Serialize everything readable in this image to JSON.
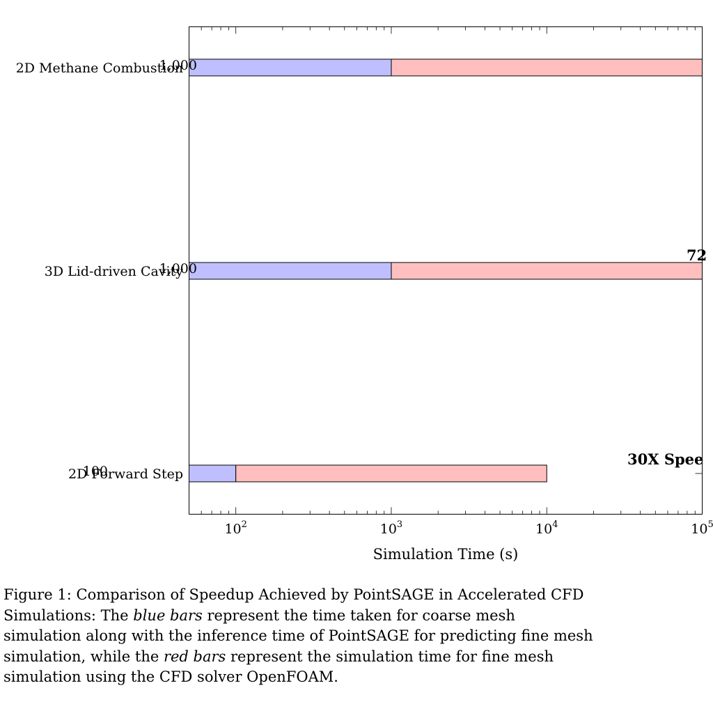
{
  "chart_data": {
    "type": "bar",
    "orientation": "horizontal",
    "stacked": true,
    "x_scale": "log",
    "xlim": [
      50,
      100000
    ],
    "xlabel": "Simulation Time (s)",
    "x_ticks": [
      100,
      1000,
      10000,
      100000
    ],
    "x_tick_labels": [
      {
        "base": "10",
        "exp": "2"
      },
      {
        "base": "10",
        "exp": "3"
      },
      {
        "base": "10",
        "exp": "4"
      },
      {
        "base": "10",
        "exp": "5"
      }
    ],
    "categories": [
      "2D Methane Combustion",
      "3D Lid-driven Cavity",
      "2D Forward Step"
    ],
    "series": [
      {
        "color": "#bfbfff",
        "values": [
          1000,
          1000,
          100
        ]
      },
      {
        "color": "#ffbfbf",
        "values": [
          100000,
          100000,
          10000
        ]
      }
    ],
    "data_labels": [
      "1,000",
      "1,000",
      "100"
    ],
    "annotations": [
      "72",
      "30X Spee"
    ]
  },
  "caption": {
    "prefix": "Figure 1: Comparison of Speedup Achieved by PointSAGE in Accelerated CFD Simulations: The ",
    "blue_phrase": "blue bars",
    "middle": " represent the time taken for coarse mesh simulation along with the inference time of PointSAGE for predicting fine mesh simulation, while the ",
    "red_phrase": "red bars",
    "suffix": " represent the simulation time for fine mesh simulation using the CFD solver OpenFOAM."
  }
}
